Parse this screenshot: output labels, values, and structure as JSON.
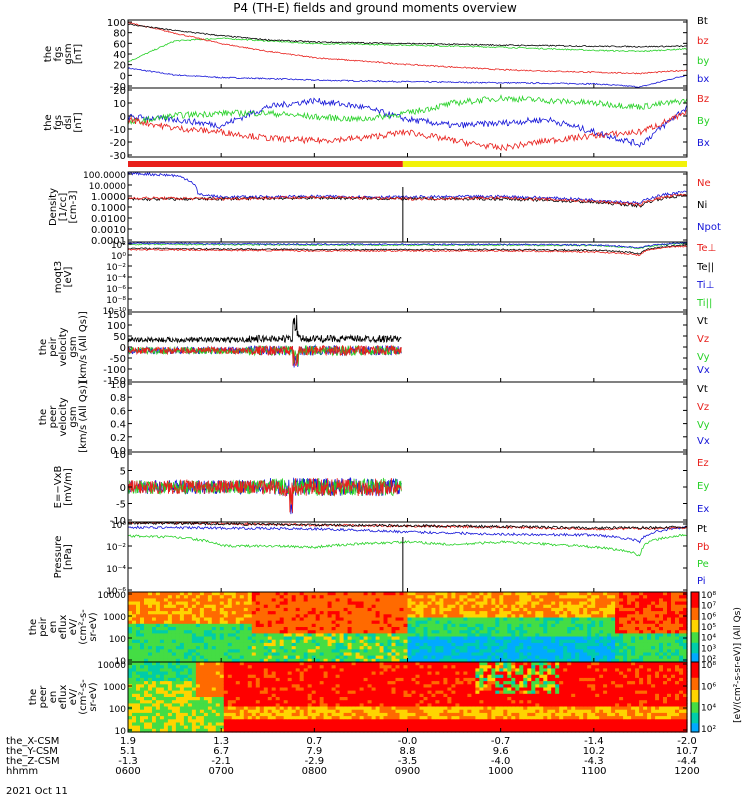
{
  "title": "P4 (TH-E) fields and ground moments overview",
  "date_label": "2021 Oct 11",
  "colors": {
    "black": "#000000",
    "red": "#e8201c",
    "green": "#27d127",
    "blue": "#1515d8",
    "yellow": "#f2f20a",
    "white": "#ffffff"
  },
  "state_bar": {
    "segments": [
      {
        "from": "0600",
        "to": "0857",
        "color": "red"
      },
      {
        "from": "0857",
        "to": "1200",
        "color": "yellow"
      }
    ]
  },
  "chart_data": [
    {
      "type": "line",
      "id": "fgs_gsm",
      "ylabel_lines": [
        "the",
        "fgs",
        "gsm",
        "[nT]"
      ],
      "ylim": [
        -30,
        100
      ],
      "yticks": [
        "100",
        "80",
        "60",
        "40",
        "20",
        "0",
        "-20"
      ],
      "series": [
        {
          "name": "Bt",
          "color": "black",
          "knots": [
            [
              6,
              92
            ],
            [
              6.5,
              80
            ],
            [
              7,
              70
            ],
            [
              7.5,
              62
            ],
            [
              8,
              58
            ],
            [
              9,
              55
            ],
            [
              10,
              52
            ],
            [
              11,
              50
            ],
            [
              11.5,
              49
            ],
            [
              12,
              50
            ]
          ]
        },
        {
          "name": "bz",
          "color": "red",
          "knots": [
            [
              6,
              95
            ],
            [
              6.5,
              75
            ],
            [
              7,
              55
            ],
            [
              7.5,
              40
            ],
            [
              8,
              28
            ],
            [
              9,
              15
            ],
            [
              10,
              5
            ],
            [
              11,
              0
            ],
            [
              11.5,
              -2
            ],
            [
              12,
              4
            ]
          ]
        },
        {
          "name": "by",
          "color": "green",
          "knots": [
            [
              6,
              20
            ],
            [
              6.5,
              60
            ],
            [
              7,
              65
            ],
            [
              7.5,
              60
            ],
            [
              8,
              55
            ],
            [
              9,
              52
            ],
            [
              10,
              48
            ],
            [
              11,
              42
            ],
            [
              11.5,
              40
            ],
            [
              12,
              45
            ]
          ]
        },
        {
          "name": "bx",
          "color": "blue",
          "knots": [
            [
              6,
              8
            ],
            [
              6.5,
              -5
            ],
            [
              7,
              -10
            ],
            [
              7.5,
              -12
            ],
            [
              8,
              -15
            ],
            [
              9,
              -18
            ],
            [
              10,
              -20
            ],
            [
              11,
              -22
            ],
            [
              11.5,
              -28
            ],
            [
              12,
              -5
            ]
          ]
        }
      ]
    },
    {
      "type": "line",
      "id": "fgs_dsl",
      "ylabel_lines": [
        "the",
        "fgs",
        "dsl",
        "[nT]"
      ],
      "ylim": [
        -35,
        20
      ],
      "yticks": [
        "20",
        "10",
        "0",
        "-10",
        "-20",
        "-30"
      ],
      "series": [
        {
          "name": "Bz",
          "color": "red",
          "knots": [
            [
              6,
              -5
            ],
            [
              6.5,
              -12
            ],
            [
              7,
              -15
            ],
            [
              7.5,
              -20
            ],
            [
              8,
              -22
            ],
            [
              8.5,
              -20
            ],
            [
              9,
              -15
            ],
            [
              9.5,
              -22
            ],
            [
              10,
              -28
            ],
            [
              10.5,
              -22
            ],
            [
              11,
              -18
            ],
            [
              11.5,
              -15
            ],
            [
              12,
              0
            ]
          ]
        },
        {
          "name": "By",
          "color": "green",
          "knots": [
            [
              6,
              -8
            ],
            [
              6.5,
              -2
            ],
            [
              7,
              0
            ],
            [
              7.5,
              0
            ],
            [
              8,
              -3
            ],
            [
              8.5,
              -5
            ],
            [
              9,
              0
            ],
            [
              9.5,
              8
            ],
            [
              10,
              12
            ],
            [
              10.5,
              10
            ],
            [
              11,
              8
            ],
            [
              11.5,
              5
            ],
            [
              12,
              10
            ]
          ]
        },
        {
          "name": "Bx",
          "color": "blue",
          "knots": [
            [
              6,
              -3
            ],
            [
              6.5,
              -5
            ],
            [
              7,
              -10
            ],
            [
              7.5,
              5
            ],
            [
              8,
              10
            ],
            [
              8.5,
              5
            ],
            [
              9,
              -5
            ],
            [
              9.5,
              -10
            ],
            [
              10,
              -8
            ],
            [
              10.5,
              -5
            ],
            [
              11,
              -15
            ],
            [
              11.5,
              -25
            ],
            [
              12,
              5
            ]
          ]
        }
      ]
    },
    {
      "type": "line",
      "id": "density",
      "ylabel_lines": [
        "Density",
        "[1/cc]",
        "[cm-3]"
      ],
      "log": true,
      "ylim": [
        0.0001,
        100
      ],
      "yticks": [
        "100.0000",
        "10.0000",
        "1.0000",
        "0.1000",
        "0.0100",
        "0.0010",
        "0.0001"
      ],
      "series": [
        {
          "name": "Ne",
          "color": "red",
          "knots": [
            [
              6,
              0.6
            ],
            [
              7,
              0.5
            ],
            [
              8,
              0.7
            ],
            [
              9,
              0.5
            ],
            [
              10,
              0.6
            ],
            [
              11,
              0.3
            ],
            [
              11.5,
              0.15
            ],
            [
              12,
              1.2
            ]
          ]
        },
        {
          "name": "Ni",
          "color": "black",
          "knots": [
            [
              6,
              0.45
            ],
            [
              7,
              0.5
            ],
            [
              8,
              0.6
            ],
            [
              9,
              0.5
            ],
            [
              10,
              0.5
            ],
            [
              11,
              0.25
            ],
            [
              11.5,
              0.12
            ],
            [
              12,
              1.0
            ]
          ]
        },
        {
          "name": "Npot",
          "color": "blue",
          "knots": [
            [
              6,
              80
            ],
            [
              6.5,
              50
            ],
            [
              6.75,
              1.2
            ],
            [
              7,
              0.7
            ],
            [
              8,
              0.8
            ],
            [
              9,
              0.7
            ],
            [
              10,
              0.8
            ],
            [
              11,
              0.4
            ],
            [
              11.5,
              0.2
            ],
            [
              12,
              2
            ]
          ]
        }
      ]
    },
    {
      "type": "line",
      "id": "temp",
      "ylabel_lines": [
        "moqt3",
        "[eV]"
      ],
      "log": true,
      "ylim": [
        1e-10,
        100
      ],
      "yticks": [
        "10²",
        "10⁰",
        "10⁻²",
        "10⁻⁴",
        "10⁻⁶",
        "10⁻⁸",
        "10⁻¹⁰"
      ],
      "series": [
        {
          "name": "Te⊥",
          "color": "red",
          "knots": [
            [
              6,
              5
            ],
            [
              8,
              3
            ],
            [
              10,
              3
            ],
            [
              11,
              2
            ],
            [
              11.5,
              0.5
            ],
            [
              12,
              20
            ]
          ]
        },
        {
          "name": "Te||",
          "color": "black",
          "knots": [
            [
              6,
              8
            ],
            [
              8,
              5
            ],
            [
              10,
              5
            ],
            [
              11,
              4
            ],
            [
              11.5,
              1
            ],
            [
              12,
              30
            ]
          ]
        },
        {
          "name": "Ti⊥",
          "color": "blue",
          "knots": [
            [
              6,
              60
            ],
            [
              8,
              40
            ],
            [
              10,
              40
            ],
            [
              11,
              30
            ],
            [
              11.5,
              10
            ],
            [
              12,
              80
            ]
          ]
        },
        {
          "name": "Ti||",
          "color": "green",
          "knots": [
            [
              6,
              40
            ],
            [
              8,
              30
            ],
            [
              10,
              30
            ],
            [
              11,
              25
            ],
            [
              11.5,
              8
            ],
            [
              12,
              60
            ]
          ]
        }
      ]
    },
    {
      "type": "line",
      "id": "peir_velocity",
      "ylabel_lines": [
        "the",
        "peir",
        "velocity",
        "gsm",
        "[km/s (All Qs)]"
      ],
      "ylim": [
        -150,
        150
      ],
      "yticks": [
        "150",
        "100",
        "50",
        "0",
        "-50",
        "-100",
        "-150"
      ],
      "data_end": "0856",
      "series": [
        {
          "name": "Vt",
          "color": "black"
        },
        {
          "name": "Vz",
          "color": "red"
        },
        {
          "name": "Vy",
          "color": "green"
        },
        {
          "name": "Vx",
          "color": "blue"
        }
      ]
    },
    {
      "type": "line",
      "id": "peer_velocity",
      "ylabel_lines": [
        "the",
        "peer",
        "velocity",
        "gsm",
        "[km/s (All Qs)]"
      ],
      "ylim": [
        0,
        1
      ],
      "yticks": [
        "1.0",
        "0.8",
        "0.6",
        "0.4",
        "0.2",
        "0.0"
      ],
      "series": [
        {
          "name": "Vt",
          "color": "black"
        },
        {
          "name": "Vz",
          "color": "red"
        },
        {
          "name": "Vy",
          "color": "green"
        },
        {
          "name": "Vx",
          "color": "blue"
        }
      ]
    },
    {
      "type": "line",
      "id": "efield",
      "ylabel_lines": [
        "E=−VxB",
        "[mV/m]"
      ],
      "ylim": [
        -10,
        10
      ],
      "yticks": [
        "10",
        "5",
        "0",
        "-5",
        "-10"
      ],
      "data_end": "0856",
      "series": [
        {
          "name": "Ez",
          "color": "red"
        },
        {
          "name": "Ey",
          "color": "green"
        },
        {
          "name": "Ex",
          "color": "blue"
        }
      ]
    },
    {
      "type": "line",
      "id": "pressure",
      "ylabel_lines": [
        "Pressure",
        "[nPa]"
      ],
      "log": true,
      "ylim": [
        1e-07,
        1
      ],
      "yticks": [
        "10⁰",
        "10⁻²",
        "10⁻⁴",
        "10⁻⁶"
      ],
      "series": [
        {
          "name": "Pt",
          "color": "black",
          "knots": [
            [
              6,
              0.8
            ],
            [
              8,
              0.5
            ],
            [
              10,
              0.35
            ],
            [
              11,
              0.25
            ],
            [
              12,
              0.3
            ]
          ]
        },
        {
          "name": "Pb",
          "color": "red",
          "knots": [
            [
              6,
              0.9
            ],
            [
              8,
              0.5
            ],
            [
              10,
              0.3
            ],
            [
              11,
              0.2
            ],
            [
              12,
              0.25
            ]
          ]
        },
        {
          "name": "Pe",
          "color": "green",
          "knots": [
            [
              6,
              0.04
            ],
            [
              6.5,
              0.03
            ],
            [
              7,
              0.004
            ],
            [
              7.5,
              0.004
            ],
            [
              8,
              0.003
            ],
            [
              9,
              0.01
            ],
            [
              9.5,
              0.005
            ],
            [
              10,
              0.01
            ],
            [
              10.5,
              0.006
            ],
            [
              11,
              0.003
            ],
            [
              11.5,
              0.0004
            ],
            [
              12,
              0.05
            ]
          ]
        },
        {
          "name": "Pi",
          "color": "blue",
          "knots": [
            [
              6,
              0.3
            ],
            [
              8,
              0.2
            ],
            [
              9,
              0.1
            ],
            [
              10,
              0.06
            ],
            [
              11,
              0.05
            ],
            [
              11.5,
              0.01
            ],
            [
              12,
              0.3
            ]
          ]
        }
      ]
    },
    {
      "type": "heatmap",
      "id": "peir_spec",
      "ylabel_lines": [
        "the",
        "peir",
        "en",
        "eflux",
        "eV/",
        "(cm²-s-",
        "sr-eV)"
      ],
      "log": true,
      "ylim": [
        5,
        25000
      ],
      "yticks": [
        "10000",
        "1000",
        "100",
        "10"
      ]
    },
    {
      "type": "heatmap",
      "id": "peer_spec",
      "ylabel_lines": [
        "the",
        "peer",
        "en",
        "eflux",
        "eV/",
        "(cm²-s-",
        "sr-eV)"
      ],
      "log": true,
      "ylim": [
        5,
        25000
      ],
      "yticks": [
        "10000",
        "1000",
        "100",
        "10"
      ]
    }
  ],
  "legends": [
    [
      "Bt",
      "bz",
      "by",
      "bx"
    ],
    [
      "Bz",
      "By",
      "Bx"
    ],
    [
      "Ne",
      "Ni",
      "Npot"
    ],
    [
      "Te⊥",
      "Te||",
      "Ti⊥",
      "Ti||"
    ],
    [
      "Vt",
      "Vz",
      "Vy",
      "Vx"
    ],
    [
      "Vt",
      "Vz",
      "Vy",
      "Vx"
    ],
    [
      "Ez",
      "Ey",
      "Ex"
    ],
    [
      "Pt",
      "Pb",
      "Pe",
      "Pi"
    ]
  ],
  "colorbar": {
    "label": "[eV/(cm²-s-sr-eV)]  (All Qs)",
    "ticks1": [
      "10⁸",
      "10⁷",
      "10⁶",
      "10⁵",
      "10⁴",
      "10³",
      "10²"
    ],
    "ticks2": [
      "10⁸",
      "10⁶",
      "10⁴",
      "10²"
    ]
  },
  "xaxis": {
    "row_labels": [
      "the_X-CSM",
      "the_Y-CSM",
      "the_Z-CSM",
      "hhmm"
    ],
    "ticks": [
      {
        "t": 6,
        "vals": [
          "1.9",
          "5.1",
          "-1.3",
          "0600"
        ]
      },
      {
        "t": 7,
        "vals": [
          "1.3",
          "6.7",
          "-2.1",
          "0700"
        ]
      },
      {
        "t": 8,
        "vals": [
          "0.7",
          "7.9",
          "-2.9",
          "0800"
        ]
      },
      {
        "t": 9,
        "vals": [
          "-0.0",
          "8.8",
          "-3.5",
          "0900"
        ]
      },
      {
        "t": 10,
        "vals": [
          "-0.7",
          "9.6",
          "-4.0",
          "1000"
        ]
      },
      {
        "t": 11,
        "vals": [
          "-1.4",
          "10.2",
          "-4.3",
          "1100"
        ]
      },
      {
        "t": 12,
        "vals": [
          "-2.0",
          "10.7",
          "-4.4",
          "1200"
        ]
      }
    ]
  }
}
